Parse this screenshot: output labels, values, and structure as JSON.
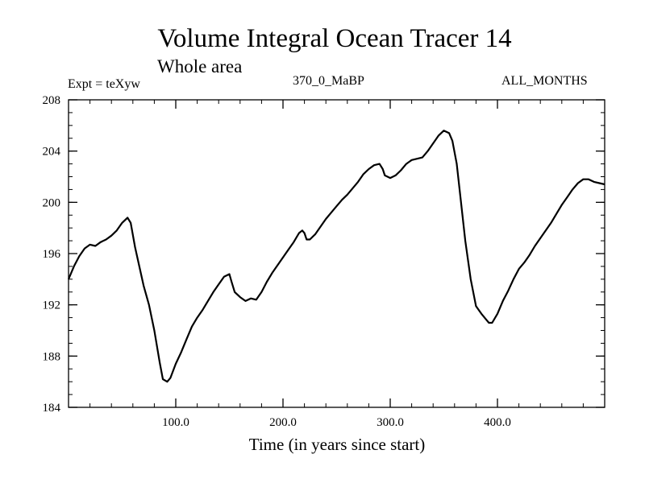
{
  "chart_data": {
    "type": "line",
    "title": "Volume Integral Ocean Tracer 14",
    "subtitle": "Whole area",
    "annotations": {
      "left": "Expt = teXyw",
      "center": "370_0_MaBP",
      "right": "ALL_MONTHS"
    },
    "xlabel": "Time (in years since start)",
    "ylabel": "",
    "xlim": [
      0,
      500
    ],
    "ylim": [
      184,
      208
    ],
    "x_ticks": [
      {
        "value": 100,
        "label": "100.0"
      },
      {
        "value": 200,
        "label": "200.0"
      },
      {
        "value": 300,
        "label": "300.0"
      },
      {
        "value": 400,
        "label": "400.0"
      }
    ],
    "y_ticks": [
      {
        "value": 184,
        "label": "184"
      },
      {
        "value": 188,
        "label": "188"
      },
      {
        "value": 192,
        "label": "192"
      },
      {
        "value": 196,
        "label": "196"
      },
      {
        "value": 200,
        "label": "200"
      },
      {
        "value": 204,
        "label": "204"
      },
      {
        "value": 208,
        "label": "208"
      }
    ],
    "grid": false,
    "series": [
      {
        "color": "#000000",
        "x": [
          0,
          5,
          10,
          15,
          20,
          25,
          30,
          35,
          40,
          45,
          50,
          55,
          58,
          62,
          66,
          70,
          75,
          80,
          85,
          88,
          92,
          95,
          100,
          105,
          110,
          115,
          120,
          125,
          130,
          135,
          140,
          145,
          150,
          152,
          155,
          160,
          165,
          170,
          175,
          180,
          185,
          190,
          195,
          200,
          205,
          210,
          215,
          218,
          220,
          222,
          225,
          230,
          235,
          240,
          245,
          250,
          255,
          260,
          265,
          270,
          275,
          280,
          285,
          290,
          293,
          295,
          300,
          305,
          310,
          315,
          320,
          325,
          330,
          335,
          340,
          345,
          350,
          355,
          358,
          362,
          366,
          370,
          375,
          380,
          385,
          390,
          392,
          395,
          400,
          405,
          410,
          415,
          420,
          425,
          430,
          435,
          440,
          445,
          450,
          455,
          460,
          465,
          470,
          475,
          480,
          485,
          490,
          495,
          500
        ],
        "y": [
          194.0,
          195.0,
          195.8,
          196.4,
          196.7,
          196.6,
          196.9,
          197.1,
          197.4,
          197.8,
          198.4,
          198.8,
          198.4,
          196.5,
          195.0,
          193.5,
          192.0,
          190.0,
          187.5,
          186.2,
          186.0,
          186.3,
          187.4,
          188.3,
          189.3,
          190.3,
          191.0,
          191.6,
          192.3,
          193.0,
          193.6,
          194.2,
          194.4,
          193.8,
          193.0,
          192.6,
          192.3,
          192.5,
          192.4,
          193.0,
          193.8,
          194.5,
          195.1,
          195.7,
          196.3,
          196.9,
          197.6,
          197.8,
          197.6,
          197.1,
          197.1,
          197.5,
          198.1,
          198.7,
          199.2,
          199.7,
          200.2,
          200.6,
          201.1,
          201.6,
          202.2,
          202.6,
          202.9,
          203.0,
          202.6,
          202.1,
          201.9,
          202.1,
          202.5,
          203.0,
          203.3,
          203.4,
          203.5,
          204.0,
          204.6,
          205.2,
          205.6,
          205.4,
          204.8,
          203.0,
          200.0,
          197.0,
          194.0,
          191.9,
          191.3,
          190.8,
          190.6,
          190.6,
          191.3,
          192.3,
          193.1,
          194.0,
          194.8,
          195.3,
          195.9,
          196.6,
          197.2,
          197.8,
          198.4,
          199.1,
          199.8,
          200.4,
          201.0,
          201.5,
          201.8,
          201.8,
          201.6,
          201.5,
          201.4
        ]
      }
    ]
  }
}
